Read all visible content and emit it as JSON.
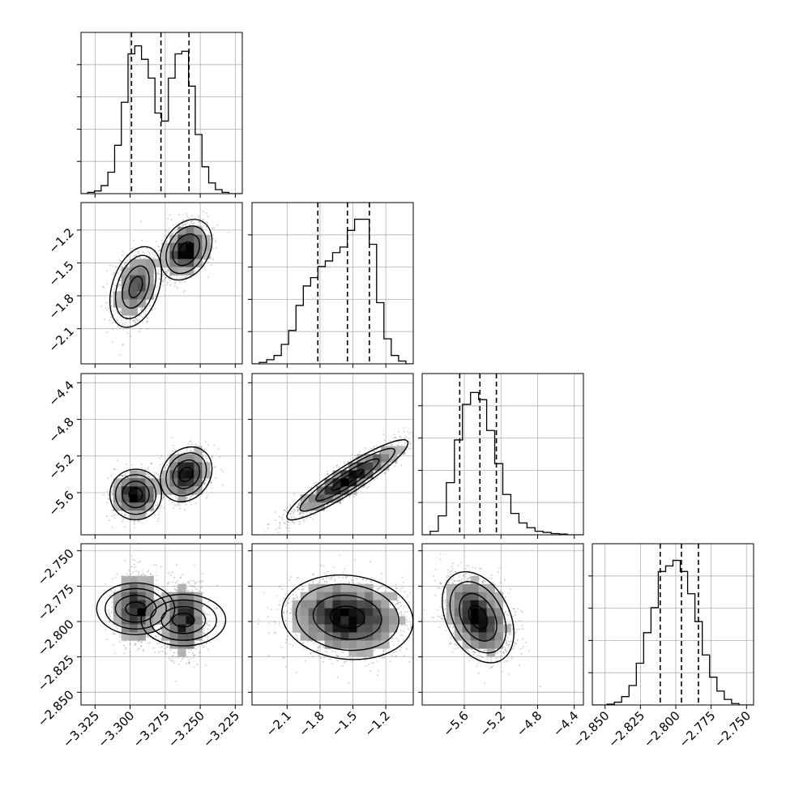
{
  "chart_data": {
    "type": "corner",
    "grid": true,
    "histogram_quantiles": [
      0.16,
      0.5,
      0.84
    ],
    "parameters": [
      {
        "xlim": [
          -3.335,
          -3.22
        ],
        "ticks": [
          -3.325,
          -3.3,
          -3.275,
          -3.25,
          -3.225
        ],
        "tick_labels": [
          "−3.325",
          "−3.300",
          "−3.275",
          "−3.250",
          "−3.225"
        ],
        "quantile_values": [
          -3.299,
          -3.278,
          -3.258
        ]
      },
      {
        "xlim": [
          -2.42,
          -0.95
        ],
        "ticks": [
          -2.1,
          -1.8,
          -1.5,
          -1.2
        ],
        "tick_labels": [
          "−2.1",
          "−1.8",
          "−1.5",
          "−1.2"
        ],
        "quantile_values": [
          -1.82,
          -1.55,
          -1.35
        ]
      },
      {
        "xlim": [
          -6.06,
          -4.3
        ],
        "ticks": [
          -5.6,
          -5.2,
          -4.8,
          -4.4
        ],
        "tick_labels": [
          "−5.6",
          "−5.2",
          "−4.8",
          "−4.4"
        ],
        "quantile_values": [
          -5.65,
          -5.43,
          -5.25
        ]
      },
      {
        "xlim": [
          -2.859,
          -2.745
        ],
        "ticks": [
          -2.85,
          -2.825,
          -2.8,
          -2.775,
          -2.75
        ],
        "tick_labels": [
          "−2.850",
          "−2.825",
          "−2.800",
          "−2.775",
          "−2.750"
        ],
        "quantile_values": [
          -2.811,
          -2.796,
          -2.784
        ]
      }
    ],
    "histograms": [
      {
        "param": 0,
        "edges_range": [
          -3.335,
          -3.22
        ],
        "counts": [
          0,
          0.5,
          1,
          3,
          8,
          18,
          34,
          52,
          55,
          50,
          43,
          30,
          27,
          43,
          52,
          53,
          40,
          22,
          10,
          4,
          1.5,
          0.5,
          0,
          0
        ],
        "ymax": 60
      },
      {
        "param": 1,
        "edges_range": [
          -2.42,
          -0.95
        ],
        "counts": [
          0,
          0.5,
          1.5,
          3,
          7,
          12,
          21,
          28,
          31,
          35,
          37,
          40,
          42,
          48,
          52,
          52,
          43,
          22,
          9,
          3,
          1,
          0
        ],
        "ymax": 58
      },
      {
        "param": 2,
        "edges_range": [
          -6.06,
          -4.3
        ],
        "counts": [
          0,
          1.5,
          8,
          22,
          40,
          55,
          60,
          57,
          44,
          30,
          17,
          9,
          5,
          3,
          1.5,
          1,
          0.5,
          0.3,
          0,
          0
        ],
        "ymax": 68
      },
      {
        "param": 3,
        "edges_range": [
          -2.859,
          -2.745
        ],
        "counts": [
          0,
          0,
          0.3,
          1,
          3,
          7,
          15,
          26,
          35,
          48,
          50,
          52,
          48,
          40,
          30,
          18,
          10,
          5,
          2,
          0.5,
          0,
          0
        ],
        "ymax": 58
      }
    ],
    "scatter_panels": [
      {
        "row": 1,
        "col": 0,
        "modes": [
          {
            "weight": 0.55,
            "mean": [
              -3.26,
              -1.38
            ],
            "sd": [
              0.008,
              0.12
            ],
            "rho": 0.3
          },
          {
            "weight": 0.45,
            "mean": [
              -3.296,
              -1.72
            ],
            "sd": [
              0.008,
              0.16
            ],
            "rho": 0.35
          }
        ]
      },
      {
        "row": 2,
        "col": 0,
        "modes": [
          {
            "weight": 0.5,
            "mean": [
              -3.26,
              -5.4
            ],
            "sd": [
              0.008,
              0.13
            ],
            "rho": 0.2
          },
          {
            "weight": 0.5,
            "mean": [
              -3.296,
              -5.62
            ],
            "sd": [
              0.008,
              0.12
            ],
            "rho": 0.0
          }
        ]
      },
      {
        "row": 2,
        "col": 1,
        "modes": [
          {
            "weight": 1.0,
            "mean": [
              -1.55,
              -5.46
            ],
            "sd": [
              0.24,
              0.19
            ],
            "rho": 0.92
          }
        ]
      },
      {
        "row": 3,
        "col": 0,
        "modes": [
          {
            "weight": 0.5,
            "mean": [
              -3.296,
              -2.791
            ],
            "sd": [
              0.008,
              0.012
            ],
            "rho": 0.0
          },
          {
            "weight": 0.5,
            "mean": [
              -3.262,
              -2.799
            ],
            "sd": [
              0.008,
              0.013
            ],
            "rho": 0.0
          }
        ]
      },
      {
        "row": 3,
        "col": 1,
        "modes": [
          {
            "weight": 1.0,
            "mean": [
              -1.55,
              -2.797
            ],
            "sd": [
              0.26,
              0.013
            ],
            "rho": -0.1
          }
        ]
      },
      {
        "row": 3,
        "col": 2,
        "modes": [
          {
            "weight": 1.0,
            "mean": [
              -5.45,
              -2.797
            ],
            "sd": [
              0.17,
              0.014
            ],
            "rho": -0.35
          }
        ]
      }
    ],
    "colors": {
      "scatter": "#000000",
      "contour": "#000000",
      "grid": "#b0b0b0",
      "frame": "#000000"
    }
  }
}
